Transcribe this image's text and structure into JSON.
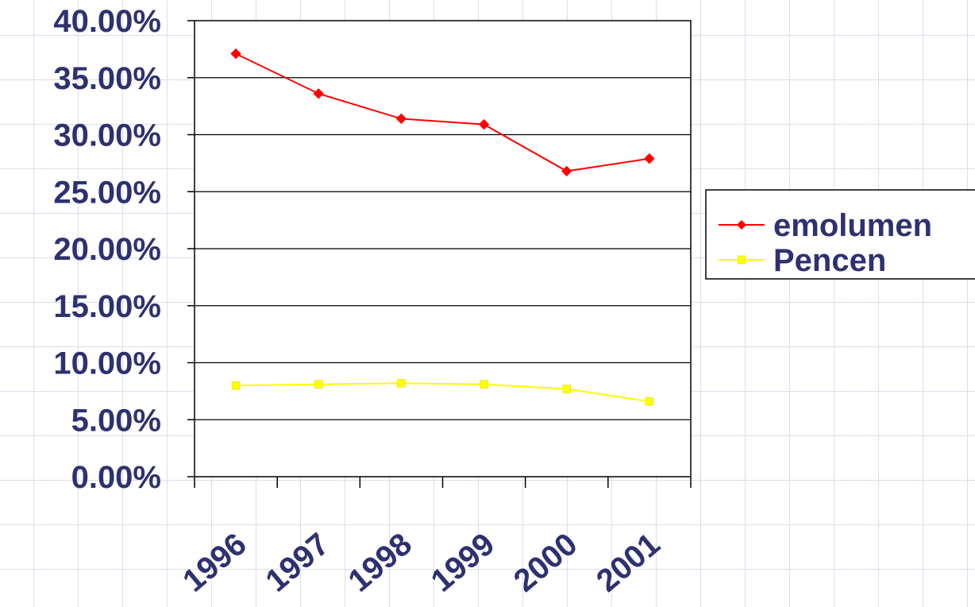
{
  "chart_data": {
    "type": "line",
    "categories": [
      "1996",
      "1997",
      "1998",
      "1999",
      "2000",
      "2001"
    ],
    "series": [
      {
        "name": "emolumen",
        "values": [
          37.1,
          33.6,
          31.4,
          30.9,
          26.8,
          27.9
        ],
        "color": "#ff0000",
        "marker": "diamond"
      },
      {
        "name": "Pencen",
        "values": [
          8.0,
          8.1,
          8.2,
          8.1,
          7.7,
          6.6
        ],
        "color": "#ffff00",
        "marker": "square"
      }
    ],
    "title": "",
    "xlabel": "",
    "ylabel": "",
    "ylim": [
      0,
      40
    ],
    "y_ticks": [
      "0.00%",
      "5.00%",
      "10.00%",
      "15.00%",
      "20.00%",
      "25.00%",
      "30.00%",
      "35.00%",
      "40.00%"
    ],
    "grid": true,
    "legend": "right"
  }
}
